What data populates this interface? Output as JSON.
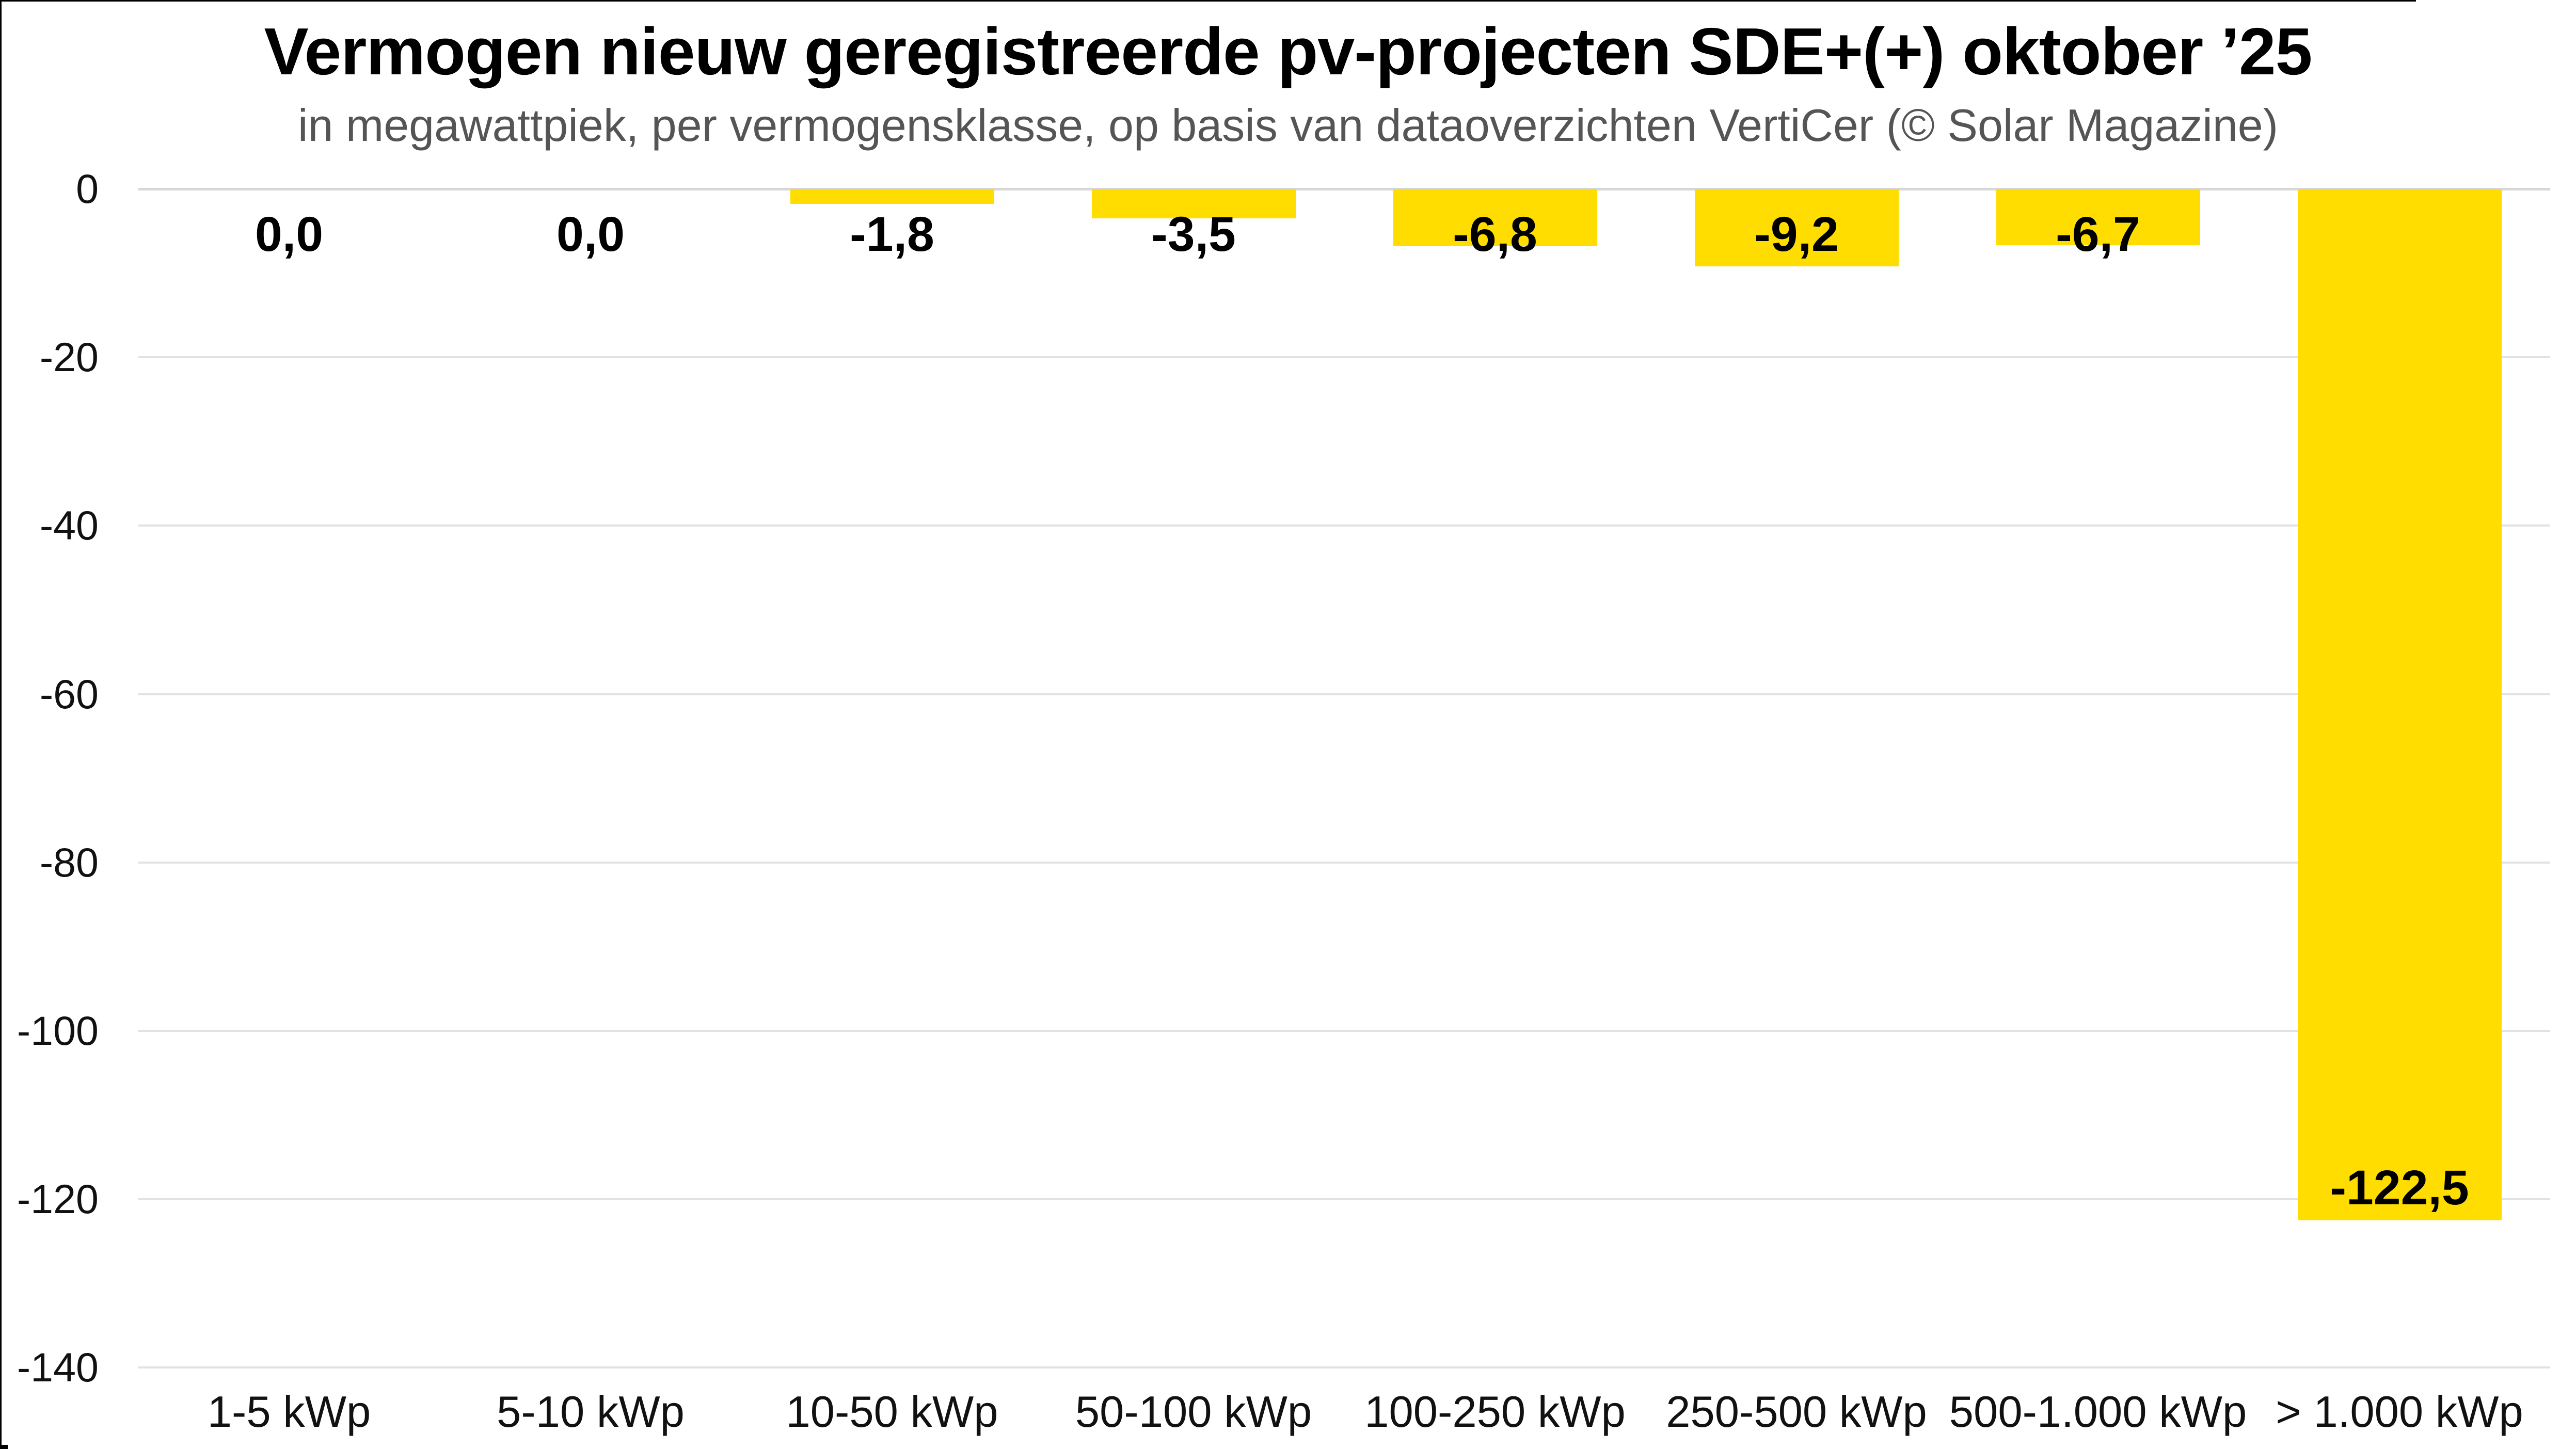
{
  "title": "Vermogen nieuw geregistreerde pv-projecten SDE+(+) oktober ’25",
  "subtitle": "in megawattpiek, per vermogensklasse, op basis van dataoverzichten VertiCer (© Solar Magazine)",
  "chart_data": {
    "type": "bar",
    "title": "Vermogen nieuw geregistreerde pv-projecten SDE+(+) oktober ’25",
    "subtitle": "in megawattpiek, per vermogensklasse, op basis van dataoverzichten VertiCer (© Solar Magazine)",
    "categories": [
      "1-5 kWp",
      "5-10 kWp",
      "10-50 kWp",
      "50-100 kWp",
      "100-250 kWp",
      "250-500 kWp",
      "500-1.000 kWp",
      "> 1.000 kWp"
    ],
    "values": [
      0.0,
      0.0,
      -1.8,
      -3.5,
      -6.8,
      -9.2,
      -6.7,
      -122.5
    ],
    "value_labels": [
      "0,0",
      "0,0",
      "-1,8",
      "-3,5",
      "-6,8",
      "-9,2",
      "-6,7",
      "-122,5"
    ],
    "y_ticks": [
      0,
      -20,
      -40,
      -60,
      -80,
      -100,
      -120,
      -140
    ],
    "y_tick_labels": [
      "0",
      "-20",
      "-40",
      "-60",
      "-80",
      "-100",
      "-120",
      "-140"
    ],
    "xlabel": "",
    "ylabel": "",
    "ylim": [
      -140,
      0
    ],
    "grid": true,
    "legend": false,
    "bar_color": "#FFDD00",
    "label_color": "#000000",
    "background_color": "#FFFFFF",
    "gridline_color": "#E2E2E2"
  }
}
